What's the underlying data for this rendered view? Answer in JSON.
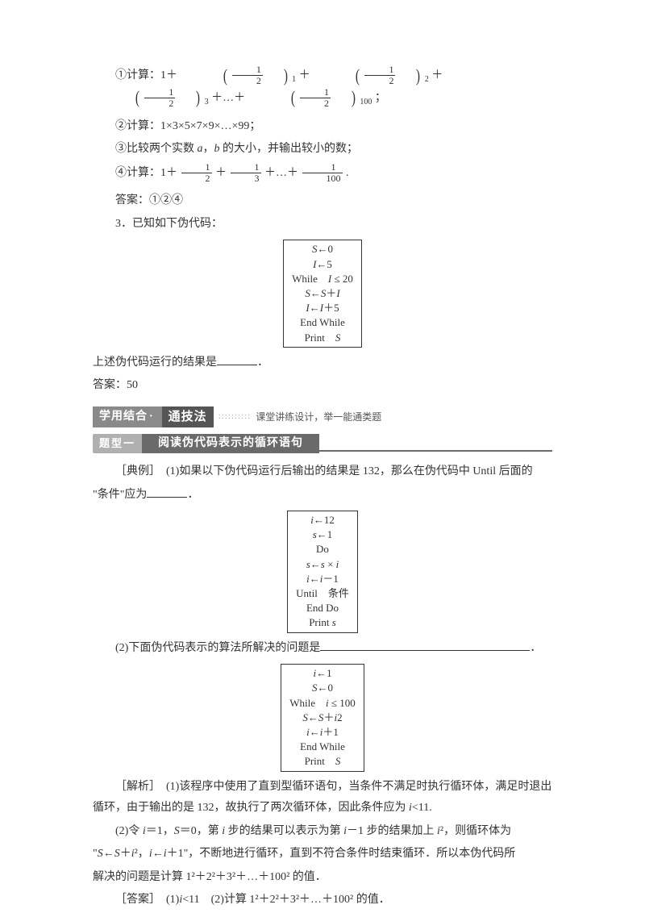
{
  "q1": {
    "prefix": "①计算：1＋",
    "terms_sup": [
      "1",
      "2",
      "3",
      "100"
    ],
    "mid": "＋",
    "dots": "＋…＋",
    "suffix": "；"
  },
  "q2": "②计算：1×3×5×7×9×…×99；",
  "q3": {
    "pre": "③比较两个实数 ",
    "a": "a",
    "mid": "，",
    "b": "b",
    "post": " 的大小，并输出较小的数；"
  },
  "q4": {
    "prefix": "④计算：1＋",
    "dens": [
      "2",
      "3",
      "100"
    ],
    "mid": "＋",
    "dots": "＋…＋",
    "suffix": "."
  },
  "ans1": "答案：①②④",
  "q3title": "3．已知如下伪代码：",
  "code1": {
    "l1a": "S",
    "l1b": "←0",
    "l2a": "I",
    "l2b": "←5",
    "l3a": "While　",
    "l3b": "I",
    "l3c": " ≤ 20",
    "l4a": "S",
    "l4b": "←",
    "l4c": "S",
    "l4d": "＋",
    "l4e": "I",
    "l5a": "I",
    "l5b": "←",
    "l5c": "I",
    "l5d": "＋5",
    "l6": "End While",
    "l7a": "Print　",
    "l7b": "S"
  },
  "q3after_a": "上述伪代码运行的结果是",
  "q3after_b": "．",
  "ans2": "答案：50",
  "banner": {
    "left": "学用结合",
    "dot": "·",
    "mid": "通技法",
    "right": "课堂讲练设计，举一能通类题"
  },
  "topic": {
    "tag": "题型一",
    "title": "阅读伪代码表示的循环语句"
  },
  "ex": {
    "p1a": "［典例］　(1)如果以下伪代码运行后输出的结果是 132，那么在伪代码中 Until 后面的",
    "p1b": "\"条件\"应为",
    "p1c": "．"
  },
  "code2": {
    "l1a": "i",
    "l1b": "←12",
    "l2a": "s",
    "l2b": "←1",
    "l3": "Do",
    "l4a": "s",
    "l4b": "←",
    "l4c": "s",
    "l4d": " × ",
    "l4e": "i",
    "l5a": "i",
    "l5b": "←",
    "l5c": "i",
    "l5d": "－1",
    "l6a": "Until　",
    "l6b": "条件",
    "l7": "End Do",
    "l8a": "Print ",
    "l8b": "s"
  },
  "ex2a": "(2)下面伪代码表示的算法所解决的问题是",
  "ex2b": "．",
  "code3": {
    "l1a": "i",
    "l1b": "←1",
    "l2a": "S",
    "l2b": "←0",
    "l3a": "While　",
    "l3b": "i",
    "l3c": " ≤ 100",
    "l4a": "S",
    "l4b": "←",
    "l4c": "S",
    "l4d": "＋",
    "l4e": "i",
    "l4f": "2",
    "l5a": "i",
    "l5b": "←",
    "l5c": "i",
    "l5d": "＋1",
    "l6": "End While",
    "l7a": "Print　",
    "l7b": "S"
  },
  "sol": {
    "p1": "［解析］　(1)该程序中使用了直到型循环语句，当条件不满足时执行循环体，满足时退出循环，由于输出的是 132，故执行了两次循环体，因此条件应为 ",
    "p1b": "i",
    "p1c": "<11.",
    "p2a": "(2)令 ",
    "p2b": "i",
    "p2c": "＝1，",
    "p2d": "S",
    "p2e": "＝0，第 ",
    "p2f": "i",
    "p2g": " 步的结果可以表示为第 ",
    "p2h": "i",
    "p2i": "－1 步的结果加上 ",
    "p2j": "i",
    "p2k": "²，则循环体为",
    "p3a": "\"",
    "p3b": "S",
    "p3c": "←",
    "p3d": "S",
    "p3e": "＋",
    "p3f": "i",
    "p3g": "²，",
    "p3h": "i",
    "p3i": "←",
    "p3j": "i",
    "p3k": "＋1\"，不断地进行循环，直到不符合条件时结束循环．所以本伪代码所",
    "p4": "解决的问题是计算 1²＋2²＋3²＋…＋100² 的值．",
    "ans_a": "［答案］　(1)",
    "ans_b": "i",
    "ans_c": "<11　(2)计算 1²＋2²＋3²＋…＋100² 的值．"
  }
}
